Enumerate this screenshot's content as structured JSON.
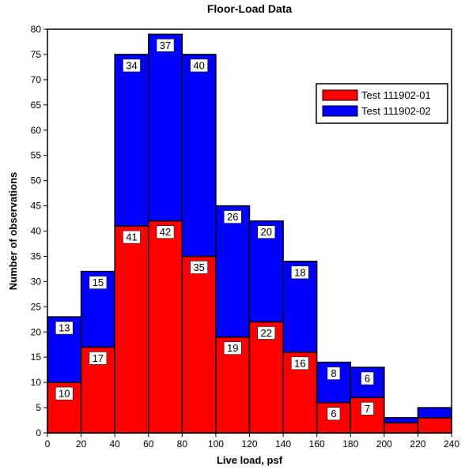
{
  "chart_data": {
    "type": "bar",
    "stacked": true,
    "title": "Floor-Load Data",
    "xlabel": "Live load, psf",
    "ylabel": "Number of observations",
    "bin_edges": [
      0,
      20,
      40,
      60,
      80,
      100,
      120,
      140,
      160,
      180,
      200,
      220,
      240
    ],
    "xlim": [
      0,
      240
    ],
    "ylim": [
      0,
      80
    ],
    "x_ticks": [
      0,
      20,
      40,
      60,
      80,
      100,
      120,
      140,
      160,
      180,
      200,
      220,
      240
    ],
    "y_ticks": [
      0,
      5,
      10,
      15,
      20,
      25,
      30,
      35,
      40,
      45,
      50,
      55,
      60,
      65,
      70,
      75,
      80
    ],
    "grid": false,
    "legend_position": "top-right",
    "series": [
      {
        "name": "Test 111902-01",
        "color": "#ff0000",
        "values": [
          10,
          17,
          41,
          42,
          35,
          19,
          22,
          16,
          6,
          7,
          2,
          3
        ],
        "labels": [
          "10",
          "17",
          "41",
          "42",
          "35",
          "19",
          "22",
          "16",
          "6",
          "7",
          "",
          ""
        ]
      },
      {
        "name": "Test 111902-02",
        "color": "#0000ff",
        "values": [
          13,
          15,
          34,
          37,
          40,
          26,
          20,
          18,
          8,
          6,
          1,
          2
        ],
        "labels": [
          "13",
          "15",
          "34",
          "37",
          "40",
          "26",
          "20",
          "18",
          "8",
          "6",
          "",
          ""
        ]
      }
    ]
  }
}
